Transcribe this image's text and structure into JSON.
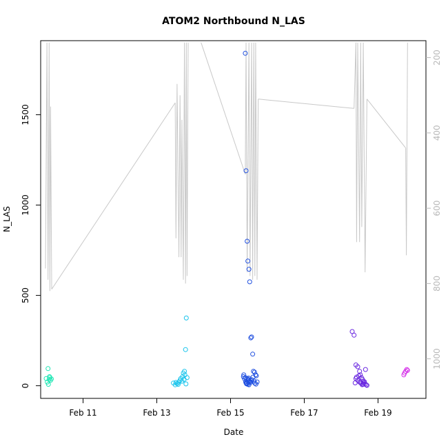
{
  "chart_data": {
    "type": "scatter",
    "title": "ATOM2 Northbound N_LAS",
    "xlabel": "Date",
    "ylabel": "N_LAS",
    "x_units": "days since Feb 10 (00:00)",
    "xlim": [
      9.85,
      20.3
    ],
    "ylim": [
      -70,
      1910
    ],
    "x_ticks": [
      {
        "value": 11,
        "label": "Feb 11"
      },
      {
        "value": 13,
        "label": "Feb 13"
      },
      {
        "value": 15,
        "label": "Feb 15"
      },
      {
        "value": 17,
        "label": "Feb 17"
      },
      {
        "value": 19,
        "label": "Feb 19"
      }
    ],
    "y_ticks": [
      {
        "value": 0,
        "label": "0"
      },
      {
        "value": 500,
        "label": "500"
      },
      {
        "value": 1000,
        "label": "1000"
      },
      {
        "value": 1500,
        "label": "1500"
      }
    ],
    "y2_lim": [
      1105,
      155
    ],
    "y2_ticks": [
      {
        "value": 200,
        "label": "200"
      },
      {
        "value": 400,
        "label": "400"
      },
      {
        "value": 600,
        "label": "600"
      },
      {
        "value": 800,
        "label": "800"
      },
      {
        "value": 1000,
        "label": "1000"
      }
    ],
    "colors": {
      "axis": "#000000",
      "right_axis": "#b8b8b8",
      "line": "#c8c8c8"
    },
    "point_groups": [
      {
        "color": "#1ee6b4",
        "x": [
          10.0,
          10.03,
          10.06,
          10.08,
          10.1,
          10.12,
          10.05,
          10.09,
          10.14
        ],
        "y": [
          40,
          20,
          8,
          35,
          45,
          30,
          95,
          50,
          38
        ]
      },
      {
        "color": "#18c4ec",
        "x": [
          13.45,
          13.5,
          13.55,
          13.6,
          13.63,
          13.65,
          13.7,
          13.72,
          13.75,
          13.78,
          13.8,
          13.68,
          13.74,
          13.76,
          13.82,
          13.79,
          13.58,
          13.52
        ],
        "y": [
          15,
          5,
          12,
          20,
          30,
          40,
          50,
          70,
          80,
          200,
          375,
          25,
          35,
          60,
          45,
          10,
          8,
          18
        ]
      },
      {
        "color": "#1f4fe0",
        "x": [
          15.4,
          15.42,
          15.45,
          15.47,
          15.5,
          15.52,
          15.55,
          15.57,
          15.6,
          15.62,
          15.65,
          15.68,
          15.7,
          15.4,
          15.45,
          15.48,
          15.5,
          15.52,
          15.55,
          15.42,
          15.44,
          15.47,
          15.5,
          15.35,
          15.38,
          15.41,
          15.43,
          15.46,
          15.49,
          15.53,
          15.56,
          15.58,
          15.61,
          15.64,
          15.66,
          15.69,
          15.72,
          15.36
        ],
        "y": [
          1840,
          1190,
          800,
          690,
          645,
          575,
          265,
          270,
          175,
          80,
          75,
          60,
          55,
          45,
          40,
          35,
          30,
          25,
          20,
          15,
          10,
          8,
          5,
          50,
          38,
          22,
          12,
          30,
          42,
          18,
          28,
          33,
          48,
          26,
          14,
          9,
          21,
          60
        ]
      },
      {
        "color": "#6a28e0",
        "x": [
          18.3,
          18.35,
          18.4,
          18.45,
          18.5,
          18.52,
          18.55,
          18.58,
          18.6,
          18.62,
          18.65,
          18.68,
          18.7,
          18.4,
          18.45,
          18.5,
          18.55,
          18.6,
          18.48,
          18.53,
          18.57,
          18.63,
          18.66,
          18.42,
          18.38
        ],
        "y": [
          300,
          280,
          115,
          105,
          80,
          60,
          45,
          35,
          25,
          15,
          10,
          5,
          2,
          40,
          30,
          20,
          12,
          8,
          55,
          18,
          6,
          22,
          90,
          48,
          16
        ]
      },
      {
        "color": "#d42ee8",
        "x": [
          19.7,
          19.72,
          19.75,
          19.78,
          19.8
        ],
        "y": [
          60,
          70,
          80,
          90,
          85
        ]
      }
    ],
    "line_series": {
      "name": "",
      "axis": "right",
      "segments": [
        [
          [
            9.98,
            760
          ],
          [
            10.02,
            160
          ],
          [
            10.05,
            790
          ],
          [
            10.08,
            160
          ],
          [
            10.1,
            820
          ],
          [
            10.12,
            330
          ],
          [
            10.15,
            815
          ]
        ],
        [
          [
            10.15,
            815
          ],
          [
            13.5,
            320
          ]
        ],
        [
          [
            13.5,
            320
          ],
          [
            13.52,
            680
          ],
          [
            13.55,
            270
          ],
          [
            13.6,
            730
          ],
          [
            13.63,
            300
          ],
          [
            13.66,
            730
          ],
          [
            13.68,
            365
          ],
          [
            13.72,
            790
          ],
          [
            13.75,
            160
          ],
          [
            13.78,
            800
          ],
          [
            13.8,
            160
          ],
          [
            13.82,
            780
          ],
          [
            13.85,
            160
          ]
        ],
        [
          [
            14.2,
            160
          ],
          [
            15.4,
            510
          ]
        ],
        [
          [
            15.4,
            510
          ],
          [
            15.42,
            160
          ],
          [
            15.45,
            770
          ],
          [
            15.5,
            160
          ],
          [
            15.53,
            780
          ],
          [
            15.57,
            160
          ],
          [
            15.6,
            790
          ],
          [
            15.63,
            160
          ],
          [
            15.66,
            780
          ],
          [
            15.68,
            160
          ],
          [
            15.72,
            790
          ],
          [
            15.75,
            310
          ]
        ],
        [
          [
            15.75,
            310
          ],
          [
            18.35,
            335
          ]
        ],
        [
          [
            18.35,
            335
          ],
          [
            18.4,
            160
          ],
          [
            18.42,
            690
          ],
          [
            18.45,
            160
          ],
          [
            18.5,
            690
          ],
          [
            18.53,
            160
          ],
          [
            18.56,
            650
          ],
          [
            18.6,
            160
          ],
          [
            18.65,
            770
          ],
          [
            18.7,
            310
          ]
        ],
        [
          [
            18.7,
            310
          ],
          [
            19.75,
            440
          ]
        ],
        [
          [
            19.75,
            440
          ],
          [
            19.77,
            725
          ],
          [
            19.8,
            160
          ]
        ]
      ]
    }
  }
}
